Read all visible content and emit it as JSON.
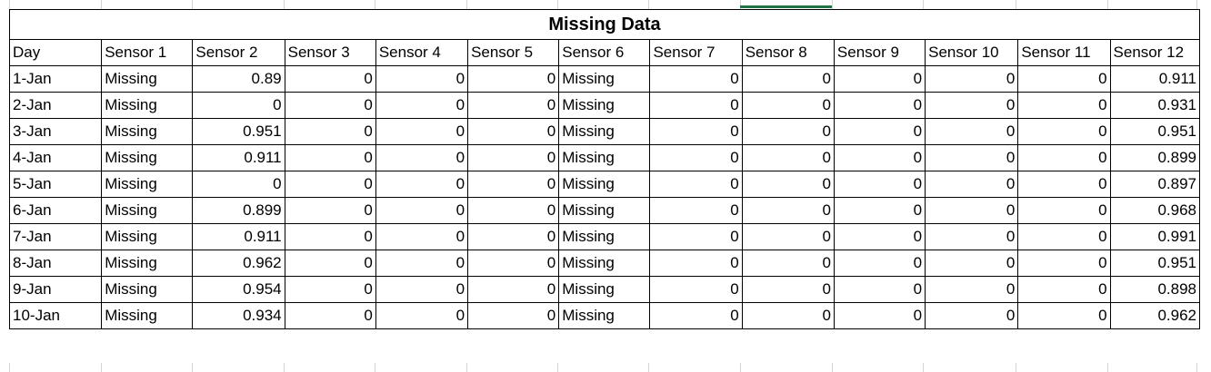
{
  "spreadsheet": {
    "title": "Missing Data",
    "headers": [
      "Day",
      "Sensor 1",
      "Sensor 2",
      "Sensor 3",
      "Sensor 4",
      "Sensor 5",
      "Sensor 6",
      "Sensor 7",
      "Sensor 8",
      "Sensor 9",
      "Sensor 10",
      "Sensor 11",
      "Sensor 12"
    ],
    "rows": [
      [
        "1-Jan",
        "Missing",
        "0.89",
        "0",
        "0",
        "0",
        "Missing",
        "0",
        "0",
        "0",
        "0",
        "0",
        "0.911"
      ],
      [
        "2-Jan",
        "Missing",
        "0",
        "0",
        "0",
        "0",
        "Missing",
        "0",
        "0",
        "0",
        "0",
        "0",
        "0.931"
      ],
      [
        "3-Jan",
        "Missing",
        "0.951",
        "0",
        "0",
        "0",
        "Missing",
        "0",
        "0",
        "0",
        "0",
        "0",
        "0.951"
      ],
      [
        "4-Jan",
        "Missing",
        "0.911",
        "0",
        "0",
        "0",
        "Missing",
        "0",
        "0",
        "0",
        "0",
        "0",
        "0.899"
      ],
      [
        "5-Jan",
        "Missing",
        "0",
        "0",
        "0",
        "0",
        "Missing",
        "0",
        "0",
        "0",
        "0",
        "0",
        "0.897"
      ],
      [
        "6-Jan",
        "Missing",
        "0.899",
        "0",
        "0",
        "0",
        "Missing",
        "0",
        "0",
        "0",
        "0",
        "0",
        "0.968"
      ],
      [
        "7-Jan",
        "Missing",
        "0.911",
        "0",
        "0",
        "0",
        "Missing",
        "0",
        "0",
        "0",
        "0",
        "0",
        "0.991"
      ],
      [
        "8-Jan",
        "Missing",
        "0.962",
        "0",
        "0",
        "0",
        "Missing",
        "0",
        "0",
        "0",
        "0",
        "0",
        "0.951"
      ],
      [
        "9-Jan",
        "Missing",
        "0.954",
        "0",
        "0",
        "0",
        "Missing",
        "0",
        "0",
        "0",
        "0",
        "0",
        "0.898"
      ],
      [
        "10-Jan",
        "Missing",
        "0.934",
        "0",
        "0",
        "0",
        "Missing",
        "0",
        "0",
        "0",
        "0",
        "0",
        "0.962"
      ]
    ]
  },
  "colors": {
    "border": "#000000",
    "gridline": "#d4d4d4",
    "selection_accent": "#217346"
  }
}
